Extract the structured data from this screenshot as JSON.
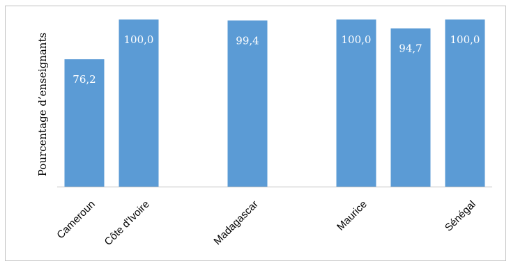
{
  "chart_data": {
    "type": "bar",
    "ylabel": "Pourcentage d’enseignants",
    "xlabel": "",
    "title": "",
    "ylim": [
      0,
      100
    ],
    "grid": false,
    "legend": "none",
    "bar_color": "#5B9BD5",
    "value_format": "comma-decimal-1",
    "categories": [
      "Cameroun",
      "Côte d'Ivoire",
      "",
      "Madagascar",
      "",
      "Maurice",
      "",
      "Sénégal"
    ],
    "values": [
      76.2,
      100.0,
      null,
      99.4,
      null,
      100.0,
      94.7,
      100.0
    ],
    "value_labels": [
      "76,2",
      "100,0",
      "",
      "99,4",
      "",
      "100,0",
      "94,7",
      "100,0"
    ]
  }
}
